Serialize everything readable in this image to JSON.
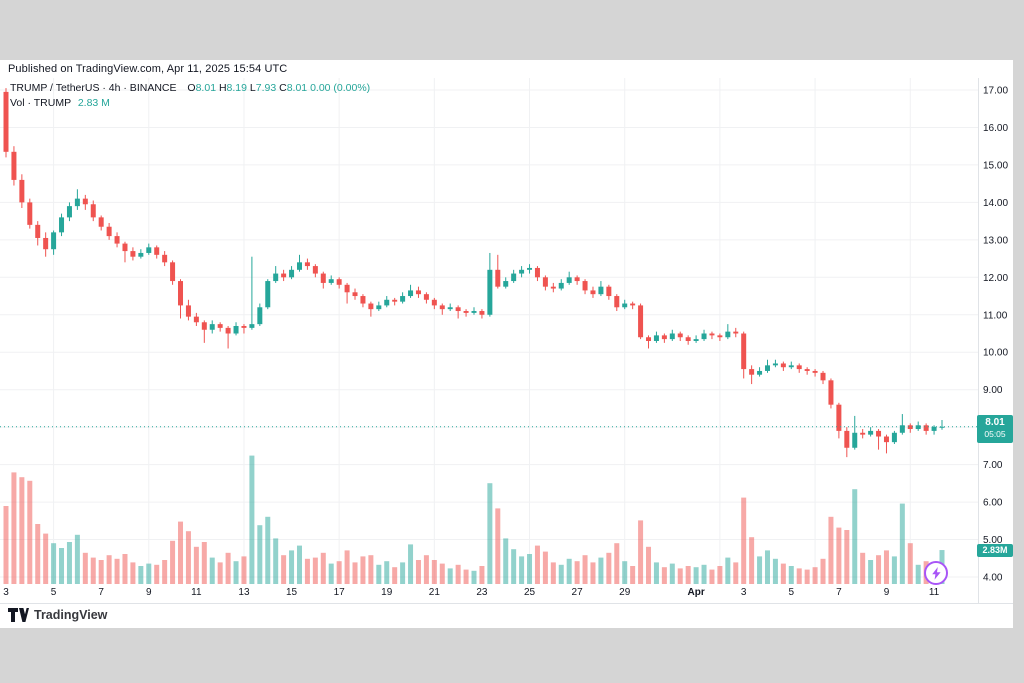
{
  "page": {
    "background": "#d5d5d5",
    "card_background": "#ffffff"
  },
  "header": {
    "published_line": "Published on TradingView.com, Apr 11, 2025 15:54 UTC"
  },
  "legend": {
    "symbol_line": {
      "title": "TRUMP / TetherUS · 4h · BINANCE",
      "o_label": "O",
      "o": "8.01",
      "h_label": "H",
      "h": "8.19",
      "l_label": "L",
      "l": "7.93",
      "c_label": "C",
      "c": "8.01",
      "change": "0.00 (0.00%)"
    },
    "volume_line": {
      "label": "Vol · TRUMP",
      "value": "2.83 M"
    }
  },
  "price_axis": {
    "labels": [
      "17.00",
      "16.00",
      "15.00",
      "14.00",
      "13.00",
      "12.00",
      "11.00",
      "10.00",
      "9.00",
      "7.00",
      "6.00",
      "5.00",
      "4.00"
    ],
    "price_badge": {
      "price": "8.01",
      "countdown": "05:05"
    },
    "volume_badge": "2.83M"
  },
  "time_axis": {
    "labels": [
      {
        "text": "3",
        "day": 0
      },
      {
        "text": "5",
        "day": 2
      },
      {
        "text": "7",
        "day": 4
      },
      {
        "text": "9",
        "day": 6
      },
      {
        "text": "11",
        "day": 8
      },
      {
        "text": "13",
        "day": 10
      },
      {
        "text": "15",
        "day": 12
      },
      {
        "text": "17",
        "day": 14
      },
      {
        "text": "19",
        "day": 16
      },
      {
        "text": "21",
        "day": 18
      },
      {
        "text": "23",
        "day": 20
      },
      {
        "text": "25",
        "day": 22
      },
      {
        "text": "27",
        "day": 24
      },
      {
        "text": "29",
        "day": 26
      },
      {
        "text": "Apr",
        "day": 29,
        "bold": true
      },
      {
        "text": "3",
        "day": 31
      },
      {
        "text": "5",
        "day": 33
      },
      {
        "text": "7",
        "day": 35
      },
      {
        "text": "9",
        "day": 37
      },
      {
        "text": "11",
        "day": 39
      }
    ],
    "gridline_days": [
      2,
      6,
      10,
      14,
      18,
      22,
      26,
      30,
      34,
      38
    ]
  },
  "colors": {
    "up": "#26a69a",
    "down": "#ef5350",
    "vol_up": "rgba(38,166,154,0.5)",
    "vol_down": "rgba(239,83,80,0.5)",
    "badge": "#26a69a",
    "current_price_line": "#26a69a",
    "grid": "#f0f1f3",
    "axis_border": "#e0e3e7",
    "axis_text": "#131722",
    "flash_purple": "#a855f7",
    "logo_text": "#37383d"
  },
  "footer": {
    "logo_text": "TradingView"
  },
  "chart_data": {
    "type": "candlestick",
    "symbol": "TRUMP / TetherUS",
    "exchange": "BINANCE",
    "interval": "4h",
    "title": "TRUMP / TetherUS · 4h · BINANCE",
    "time_range": "Mar 3 - Apr 11, 2025",
    "price_axis_range": {
      "min": 4,
      "max": 17,
      "step": 1
    },
    "current_price": 8.01,
    "countdown": "05:05",
    "last_candle": {
      "open": 8.01,
      "high": 8.19,
      "low": 7.93,
      "close": 8.01,
      "change": "0.00 (0.00%)",
      "volume_m": 2.83
    },
    "volume_unit": "M",
    "grid": true,
    "legend_position": "top-left",
    "candles": {
      "start_label": "Mar 3",
      "candles_per_day": 3,
      "fields": [
        "open",
        "high",
        "low",
        "close",
        "volume_m"
      ],
      "ohlcv": [
        [
          16.95,
          17.05,
          15.2,
          15.35,
          6.5
        ],
        [
          15.35,
          15.5,
          14.45,
          14.6,
          9.3
        ],
        [
          14.6,
          14.75,
          13.85,
          14.0,
          8.9
        ],
        [
          14.0,
          14.1,
          13.3,
          13.4,
          8.6
        ],
        [
          13.4,
          13.5,
          12.85,
          13.05,
          5.0
        ],
        [
          13.05,
          13.2,
          12.55,
          12.75,
          4.2
        ],
        [
          12.75,
          13.25,
          12.6,
          13.2,
          3.4
        ],
        [
          13.2,
          13.7,
          13.1,
          13.6,
          3.0
        ],
        [
          13.6,
          14.0,
          13.5,
          13.9,
          3.5
        ],
        [
          13.9,
          14.35,
          13.8,
          14.1,
          4.1
        ],
        [
          14.1,
          14.2,
          13.8,
          13.95,
          2.6
        ],
        [
          13.95,
          14.05,
          13.5,
          13.6,
          2.2
        ],
        [
          13.6,
          13.65,
          13.25,
          13.35,
          2.0
        ],
        [
          13.35,
          13.45,
          13.0,
          13.1,
          2.4
        ],
        [
          13.1,
          13.2,
          12.8,
          12.9,
          2.1
        ],
        [
          12.9,
          12.95,
          12.4,
          12.7,
          2.5
        ],
        [
          12.7,
          12.8,
          12.45,
          12.55,
          1.8
        ],
        [
          12.55,
          12.75,
          12.5,
          12.65,
          1.5
        ],
        [
          12.65,
          12.9,
          12.6,
          12.8,
          1.7
        ],
        [
          12.8,
          12.85,
          12.5,
          12.6,
          1.6
        ],
        [
          12.6,
          12.7,
          12.3,
          12.4,
          2.0
        ],
        [
          12.4,
          12.45,
          11.8,
          11.9,
          3.6
        ],
        [
          11.9,
          11.95,
          10.9,
          11.25,
          5.2
        ],
        [
          11.25,
          11.4,
          10.85,
          10.95,
          4.4
        ],
        [
          10.95,
          11.05,
          10.7,
          10.8,
          3.1
        ],
        [
          10.8,
          10.85,
          10.25,
          10.6,
          3.5
        ],
        [
          10.6,
          10.85,
          10.5,
          10.75,
          2.2
        ],
        [
          10.75,
          10.8,
          10.55,
          10.65,
          1.8
        ],
        [
          10.65,
          10.7,
          10.1,
          10.5,
          2.6
        ],
        [
          10.5,
          10.8,
          10.45,
          10.7,
          1.9
        ],
        [
          10.7,
          10.75,
          10.5,
          10.65,
          2.3
        ],
        [
          10.65,
          12.55,
          10.6,
          10.75,
          10.7
        ],
        [
          10.75,
          11.3,
          10.7,
          11.2,
          4.9
        ],
        [
          11.2,
          11.95,
          11.15,
          11.9,
          5.6
        ],
        [
          11.9,
          12.3,
          11.85,
          12.1,
          3.8
        ],
        [
          12.1,
          12.2,
          11.9,
          12.0,
          2.4
        ],
        [
          12.0,
          12.3,
          11.95,
          12.2,
          2.8
        ],
        [
          12.2,
          12.6,
          12.15,
          12.4,
          3.2
        ],
        [
          12.4,
          12.5,
          12.2,
          12.3,
          2.1
        ],
        [
          12.3,
          12.35,
          12.0,
          12.1,
          2.2
        ],
        [
          12.1,
          12.15,
          11.7,
          11.85,
          2.6
        ],
        [
          11.85,
          12.05,
          11.8,
          11.95,
          1.7
        ],
        [
          11.95,
          12.0,
          11.7,
          11.8,
          1.9
        ],
        [
          11.8,
          11.85,
          11.3,
          11.6,
          2.8
        ],
        [
          11.6,
          11.7,
          11.4,
          11.5,
          1.8
        ],
        [
          11.5,
          11.55,
          11.2,
          11.3,
          2.3
        ],
        [
          11.3,
          11.35,
          10.95,
          11.15,
          2.4
        ],
        [
          11.15,
          11.35,
          11.1,
          11.25,
          1.6
        ],
        [
          11.25,
          11.5,
          11.2,
          11.4,
          1.9
        ],
        [
          11.4,
          11.45,
          11.25,
          11.35,
          1.4
        ],
        [
          11.35,
          11.6,
          11.3,
          11.5,
          1.8
        ],
        [
          11.5,
          11.8,
          11.45,
          11.65,
          3.3
        ],
        [
          11.65,
          11.75,
          11.45,
          11.55,
          2.0
        ],
        [
          11.55,
          11.6,
          11.3,
          11.4,
          2.4
        ],
        [
          11.4,
          11.45,
          11.15,
          11.25,
          2.0
        ],
        [
          11.25,
          11.3,
          11.0,
          11.15,
          1.7
        ],
        [
          11.15,
          11.3,
          11.1,
          11.2,
          1.3
        ],
        [
          11.2,
          11.25,
          10.9,
          11.1,
          1.6
        ],
        [
          11.1,
          11.15,
          10.95,
          11.05,
          1.2
        ],
        [
          11.05,
          11.2,
          11.0,
          11.1,
          1.1
        ],
        [
          11.1,
          11.15,
          10.9,
          11.0,
          1.5
        ],
        [
          11.0,
          12.65,
          10.95,
          12.2,
          8.4
        ],
        [
          12.2,
          12.6,
          11.7,
          11.75,
          6.3
        ],
        [
          11.75,
          12.0,
          11.7,
          11.9,
          3.8
        ],
        [
          11.9,
          12.2,
          11.85,
          12.1,
          2.9
        ],
        [
          12.1,
          12.3,
          12.0,
          12.2,
          2.3
        ],
        [
          12.2,
          12.35,
          12.1,
          12.25,
          2.5
        ],
        [
          12.25,
          12.3,
          11.9,
          12.0,
          3.2
        ],
        [
          12.0,
          12.05,
          11.65,
          11.75,
          2.7
        ],
        [
          11.75,
          11.85,
          11.6,
          11.7,
          1.8
        ],
        [
          11.7,
          11.95,
          11.65,
          11.85,
          1.6
        ],
        [
          11.85,
          12.15,
          11.8,
          12.0,
          2.1
        ],
        [
          12.0,
          12.05,
          11.8,
          11.9,
          1.9
        ],
        [
          11.9,
          11.95,
          11.55,
          11.65,
          2.4
        ],
        [
          11.65,
          11.75,
          11.45,
          11.55,
          1.8
        ],
        [
          11.55,
          11.9,
          11.5,
          11.75,
          2.2
        ],
        [
          11.75,
          11.8,
          11.4,
          11.5,
          2.6
        ],
        [
          11.5,
          11.55,
          11.1,
          11.2,
          3.4
        ],
        [
          11.2,
          11.4,
          11.15,
          11.3,
          1.9
        ],
        [
          11.3,
          11.35,
          11.15,
          11.25,
          1.5
        ],
        [
          11.25,
          11.3,
          10.35,
          10.4,
          5.3
        ],
        [
          10.4,
          10.45,
          10.1,
          10.3,
          3.1
        ],
        [
          10.3,
          10.55,
          10.25,
          10.45,
          1.8
        ],
        [
          10.45,
          10.5,
          10.25,
          10.35,
          1.4
        ],
        [
          10.35,
          10.6,
          10.3,
          10.5,
          1.7
        ],
        [
          10.5,
          10.55,
          10.3,
          10.4,
          1.3
        ],
        [
          10.4,
          10.45,
          10.2,
          10.3,
          1.5
        ],
        [
          10.3,
          10.45,
          10.25,
          10.35,
          1.4
        ],
        [
          10.35,
          10.6,
          10.3,
          10.5,
          1.6
        ],
        [
          10.5,
          10.55,
          10.35,
          10.45,
          1.2
        ],
        [
          10.45,
          10.5,
          10.3,
          10.4,
          1.5
        ],
        [
          10.4,
          10.75,
          10.35,
          10.55,
          2.2
        ],
        [
          10.55,
          10.65,
          10.4,
          10.5,
          1.8
        ],
        [
          10.5,
          10.55,
          9.3,
          9.55,
          7.2
        ],
        [
          9.55,
          9.65,
          9.15,
          9.4,
          3.9
        ],
        [
          9.4,
          9.6,
          9.35,
          9.5,
          2.3
        ],
        [
          9.5,
          9.8,
          9.45,
          9.65,
          2.8
        ],
        [
          9.65,
          9.8,
          9.6,
          9.7,
          2.1
        ],
        [
          9.7,
          9.75,
          9.5,
          9.6,
          1.7
        ],
        [
          9.6,
          9.75,
          9.55,
          9.65,
          1.5
        ],
        [
          9.65,
          9.7,
          9.45,
          9.55,
          1.3
        ],
        [
          9.55,
          9.6,
          9.4,
          9.5,
          1.2
        ],
        [
          9.5,
          9.55,
          9.35,
          9.45,
          1.4
        ],
        [
          9.45,
          9.5,
          9.15,
          9.25,
          2.1
        ],
        [
          9.25,
          9.3,
          8.5,
          8.6,
          5.6
        ],
        [
          8.6,
          8.65,
          7.7,
          7.9,
          4.7
        ],
        [
          7.9,
          8.0,
          7.2,
          7.45,
          4.5
        ],
        [
          7.45,
          8.3,
          7.4,
          7.85,
          7.9
        ],
        [
          7.85,
          7.95,
          7.7,
          7.8,
          2.6
        ],
        [
          7.8,
          8.0,
          7.75,
          7.9,
          2.0
        ],
        [
          7.9,
          7.95,
          7.4,
          7.75,
          2.4
        ],
        [
          7.75,
          7.8,
          7.3,
          7.6,
          2.8
        ],
        [
          7.6,
          7.9,
          7.55,
          7.85,
          2.3
        ],
        [
          7.85,
          8.35,
          7.8,
          8.05,
          6.7
        ],
        [
          8.05,
          8.1,
          7.85,
          7.95,
          3.4
        ],
        [
          7.95,
          8.15,
          7.9,
          8.05,
          1.6
        ],
        [
          8.05,
          8.1,
          7.8,
          7.9,
          1.9
        ],
        [
          7.9,
          8.05,
          7.8,
          8.01,
          1.4
        ],
        [
          8.01,
          8.19,
          7.93,
          8.01,
          2.83
        ]
      ]
    }
  }
}
